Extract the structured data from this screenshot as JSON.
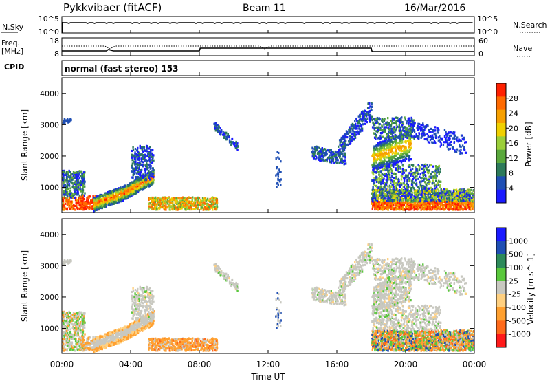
{
  "header": {
    "title": "Pykkvibaer (fitACF)",
    "beam": "Beam 11",
    "date": "16/Mar/2016"
  },
  "top_panels": {
    "nsky_label": "N.Sky",
    "nsky_ticks": [
      "10^5",
      "10^0"
    ],
    "nsearch_label": "N.Search",
    "nsearch_ticks": [
      "10^5",
      "10^0"
    ],
    "freq_label_line1": "Freq.",
    "freq_label_line2": "[MHz]",
    "freq_ticks": [
      "18",
      "8"
    ],
    "nave_label": "Nave",
    "nave_ticks": [
      "60",
      "0"
    ],
    "cpid_label": "CPID",
    "cpid_text": "normal (fast stereo) 153"
  },
  "colors": {
    "power_scale": [
      "#1a1aff",
      "#1f4fb4",
      "#2d7a5a",
      "#5aa83c",
      "#9bcf3a",
      "#f0d000",
      "#f7a000",
      "#ff6a00",
      "#ff2000"
    ],
    "velocity_scale": [
      "#ff1a1a",
      "#ff6a1a",
      "#ffa030",
      "#ffd080",
      "#c8c8c0",
      "#5ac83c",
      "#2d8a5a",
      "#1f4fb4",
      "#1a1aff"
    ]
  },
  "chart_data": [
    {
      "type": "heatmap",
      "name": "power",
      "ylabel": "Slant Range [km]",
      "yticks": [
        "1000",
        "2000",
        "3000",
        "4000"
      ],
      "ylim": [
        200,
        4500
      ],
      "xlim": [
        0,
        24
      ],
      "colorbar_label": "Power [dB]",
      "colorbar_ticks": [
        "4",
        "8",
        "12",
        "16",
        "20",
        "24",
        "28"
      ],
      "clim": [
        0,
        32
      ]
    },
    {
      "type": "heatmap",
      "name": "velocity",
      "ylabel": "Slant Range [km]",
      "yticks": [
        "1000",
        "2000",
        "3000",
        "4000"
      ],
      "ylim": [
        200,
        4500
      ],
      "xlim": [
        0,
        24
      ],
      "colorbar_label": "Velocity [m s^-1]",
      "colorbar_ticks": [
        "-1000",
        "-500",
        "-100",
        "-25",
        "25",
        "100",
        "500",
        "1000"
      ]
    }
  ],
  "xaxis": {
    "ticks": [
      "00:00",
      "04:00",
      "08:00",
      "12:00",
      "16:00",
      "20:00",
      "00:00"
    ],
    "label": "Time UT"
  }
}
